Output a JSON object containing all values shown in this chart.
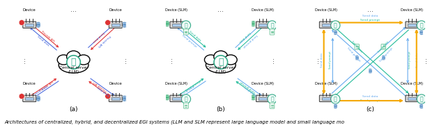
{
  "caption": "Architectures of centralized, hybrid, and decentralized EGI systems (LLM and SLM represent large language model and small language mo",
  "panels": [
    "(a)",
    "(b)",
    "(c)"
  ],
  "background_color": "#ffffff",
  "arrow_colors": {
    "red": "#e03030",
    "blue": "#4466dd",
    "teal": "#22bb99",
    "orange": "#f5a800",
    "blue_light": "#66aaee"
  },
  "caption_fontsize": 5.0,
  "panel_label_fontsize": 6.5
}
